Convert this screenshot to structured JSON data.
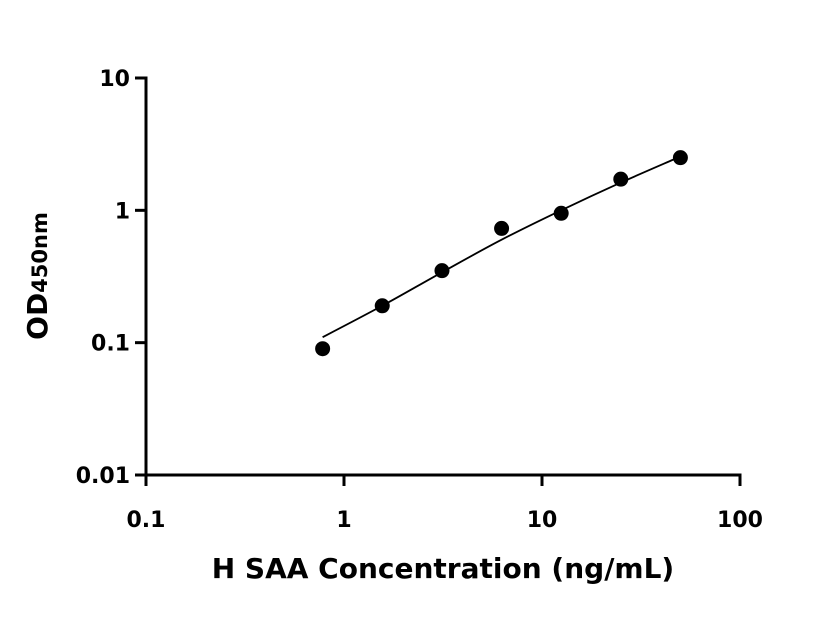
{
  "chart_data": {
    "type": "scatter",
    "xlabel": "H SAA Concentration (ng/mL)",
    "ylabel_main": "OD",
    "ylabel_sub": "450nm",
    "x_scale": "log",
    "y_scale": "log",
    "xlim": [
      0.1,
      100
    ],
    "ylim": [
      0.01,
      10
    ],
    "x_ticks": [
      0.1,
      1,
      10,
      100
    ],
    "x_tick_labels": [
      "0.1",
      "1",
      "10",
      "100"
    ],
    "y_ticks": [
      0.01,
      0.1,
      1,
      10
    ],
    "y_tick_labels": [
      "0.01",
      "0.1",
      "1",
      "10"
    ],
    "grid": false,
    "series": [
      {
        "x": [
          0.78,
          1.56,
          3.125,
          6.25,
          12.5,
          25,
          50
        ],
        "y": [
          0.09,
          0.19,
          0.35,
          0.73,
          0.95,
          1.72,
          2.5
        ]
      }
    ],
    "fit_curve": {
      "x": [
        0.78,
        1.56,
        3.125,
        6.25,
        12.5,
        25,
        50
      ],
      "y": [
        0.11,
        0.19,
        0.34,
        0.6,
        1.0,
        1.62,
        2.55
      ]
    },
    "colors": {
      "points": "#000000",
      "curve": "#000000",
      "axes": "#000000"
    }
  }
}
